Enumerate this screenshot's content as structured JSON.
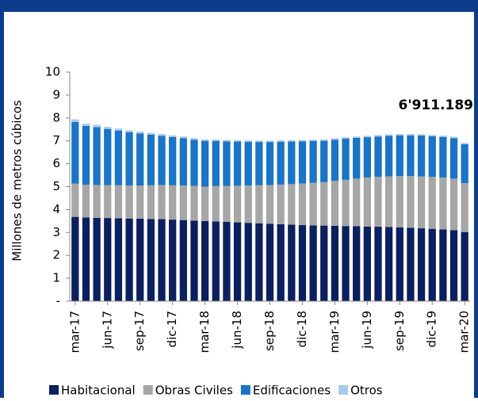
{
  "chart_data": {
    "type": "stacked_bar",
    "y_label": "Millones de metros cúbicos",
    "annotation": "6'911.189",
    "categories": [
      "mar-17",
      null,
      null,
      "jun-17",
      null,
      null,
      "sep-17",
      null,
      null,
      "dic-17",
      null,
      null,
      "mar-18",
      null,
      null,
      "jun-18",
      null,
      null,
      "sep-18",
      null,
      null,
      "dic-18",
      null,
      null,
      "mar-19",
      null,
      null,
      "jun-19",
      null,
      null,
      "sep-19",
      null,
      null,
      "dic-19",
      null,
      null,
      "mar-20"
    ],
    "series": [
      {
        "name": "Habitacional",
        "color": "#0c1f5e",
        "values": [
          3.68,
          3.65,
          3.64,
          3.63,
          3.62,
          3.61,
          3.6,
          3.59,
          3.58,
          3.56,
          3.54,
          3.52,
          3.5,
          3.48,
          3.46,
          3.44,
          3.42,
          3.4,
          3.38,
          3.36,
          3.34,
          3.32,
          3.31,
          3.3,
          3.29,
          3.28,
          3.27,
          3.26,
          3.25,
          3.24,
          3.22,
          3.2,
          3.18,
          3.16,
          3.13,
          3.1,
          3.02
        ]
      },
      {
        "name": "Obras Civiles",
        "color": "#a6a6a6",
        "values": [
          1.45,
          1.43,
          1.43,
          1.43,
          1.44,
          1.44,
          1.45,
          1.47,
          1.49,
          1.5,
          1.51,
          1.51,
          1.5,
          1.54,
          1.57,
          1.6,
          1.63,
          1.66,
          1.69,
          1.73,
          1.77,
          1.82,
          1.86,
          1.9,
          1.96,
          2.02,
          2.08,
          2.14,
          2.18,
          2.21,
          2.24,
          2.26,
          2.27,
          2.27,
          2.27,
          2.25,
          2.13
        ]
      },
      {
        "name": "Edificaciones",
        "color": "#1b74c5",
        "values": [
          2.69,
          2.57,
          2.53,
          2.46,
          2.39,
          2.33,
          2.27,
          2.21,
          2.15,
          2.11,
          2.07,
          2.02,
          2.0,
          1.98,
          1.95,
          1.93,
          1.91,
          1.89,
          1.88,
          1.87,
          1.86,
          1.84,
          1.82,
          1.8,
          1.8,
          1.8,
          1.78,
          1.76,
          1.76,
          1.77,
          1.78,
          1.78,
          1.78,
          1.77,
          1.77,
          1.77,
          1.7
        ]
      },
      {
        "name": "Otros",
        "color": "#a9c9ea",
        "values": [
          0.12,
          0.1,
          0.1,
          0.09,
          0.09,
          0.08,
          0.08,
          0.08,
          0.08,
          0.07,
          0.07,
          0.07,
          0.07,
          0.06,
          0.06,
          0.06,
          0.06,
          0.06,
          0.06,
          0.06,
          0.06,
          0.06,
          0.06,
          0.06,
          0.06,
          0.06,
          0.06,
          0.06,
          0.06,
          0.06,
          0.06,
          0.06,
          0.06,
          0.06,
          0.06,
          0.06,
          0.06
        ]
      }
    ],
    "ylim": [
      0,
      10
    ],
    "yticks": [
      {
        "value": 0,
        "label": "-"
      },
      1,
      2,
      3,
      4,
      5,
      6,
      7,
      8,
      9,
      10
    ],
    "legend": "bottom"
  }
}
